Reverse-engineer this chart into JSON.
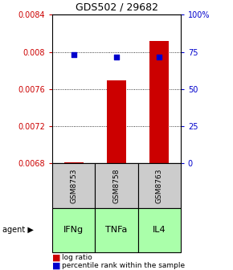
{
  "title": "GDS502 / 29682",
  "samples": [
    "GSM8753",
    "GSM8758",
    "GSM8763"
  ],
  "agents": [
    "IFNg",
    "TNFa",
    "IL4"
  ],
  "log_ratio_values": [
    0.006815,
    0.007695,
    0.008115
  ],
  "log_ratio_base": 0.0068,
  "percentile_values": [
    73.0,
    71.5,
    71.5
  ],
  "ylim_left": [
    0.0068,
    0.0084
  ],
  "ylim_right": [
    0,
    100
  ],
  "yticks_left": [
    0.0068,
    0.0072,
    0.0076,
    0.008,
    0.0084
  ],
  "ytick_labels_left": [
    "0.0068",
    "0.0072",
    "0.0076",
    "0.008",
    "0.0084"
  ],
  "yticks_right": [
    0,
    25,
    50,
    75,
    100
  ],
  "ytick_labels_right": [
    "0",
    "25",
    "50",
    "75",
    "100%"
  ],
  "bar_color": "#cc0000",
  "dot_color": "#0000cc",
  "agent_bg_color": "#aaffaa",
  "sample_bg_color": "#cccccc",
  "legend_bar_label": "log ratio",
  "legend_dot_label": "percentile rank within the sample",
  "agent_label": "agent",
  "bar_width": 0.45,
  "figsize": [
    2.9,
    3.36
  ],
  "dpi": 100
}
